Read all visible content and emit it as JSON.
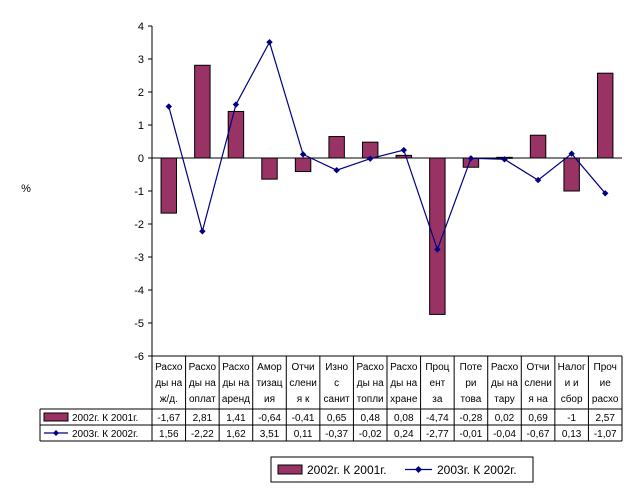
{
  "chart_data": {
    "type": "bar",
    "ylabel": "%",
    "ylim": [
      -6,
      4
    ],
    "yticks": [
      4,
      3,
      2,
      1,
      0,
      -1,
      -2,
      -3,
      -4,
      -5,
      -6
    ],
    "categories": [
      [
        "Расхо",
        "ды на",
        "ж/д."
      ],
      [
        "Расхо",
        "ды на",
        "оплат"
      ],
      [
        "Расхо",
        "ды на",
        "аренд"
      ],
      [
        "Амор",
        "тизац",
        "ия"
      ],
      [
        "Отчи",
        "слени",
        "я к"
      ],
      [
        "Изно",
        "с",
        "санит"
      ],
      [
        "Расхо",
        "ды на",
        "топли"
      ],
      [
        "Расхо",
        "ды на",
        "хране"
      ],
      [
        "Проц",
        "ент",
        "за"
      ],
      [
        "Поте",
        "ри",
        "това"
      ],
      [
        "Расхо",
        "ды на",
        "тару"
      ],
      [
        "Отчи",
        "слени",
        "я на"
      ],
      [
        "Налог",
        "и и",
        "сбор"
      ],
      [
        "Проч",
        "ие",
        "расхо"
      ]
    ],
    "series": [
      {
        "name": "2002г. К 2001г.",
        "kind": "bar",
        "color": "#993366",
        "values": [
          -1.67,
          2.81,
          1.41,
          -0.64,
          -0.41,
          0.65,
          0.48,
          0.08,
          -4.74,
          -0.28,
          0.02,
          0.69,
          -1,
          2.57
        ],
        "labels": [
          "-1,67",
          "2,81",
          "1,41",
          "-0,64",
          "-0,41",
          "0,65",
          "0,48",
          "0,08",
          "-4,74",
          "-0,28",
          "0,02",
          "0,69",
          "-1",
          "2,57"
        ]
      },
      {
        "name": "2003г. К 2002г.",
        "kind": "line",
        "color": "#000080",
        "values": [
          1.56,
          -2.22,
          1.62,
          3.51,
          0.11,
          -0.37,
          -0.02,
          0.24,
          -2.77,
          -0.01,
          -0.04,
          -0.67,
          0.13,
          -1.07
        ],
        "labels": [
          "1,56",
          "-2,22",
          "1,62",
          "3,51",
          "0,11",
          "-0,37",
          "-0,02",
          "0,24",
          "-2,77",
          "-0,01",
          "-0,04",
          "-0,67",
          "0,13",
          "-1,07"
        ]
      }
    ],
    "legend": [
      "2002г. К 2001г.",
      "2003г. К 2002г."
    ]
  }
}
